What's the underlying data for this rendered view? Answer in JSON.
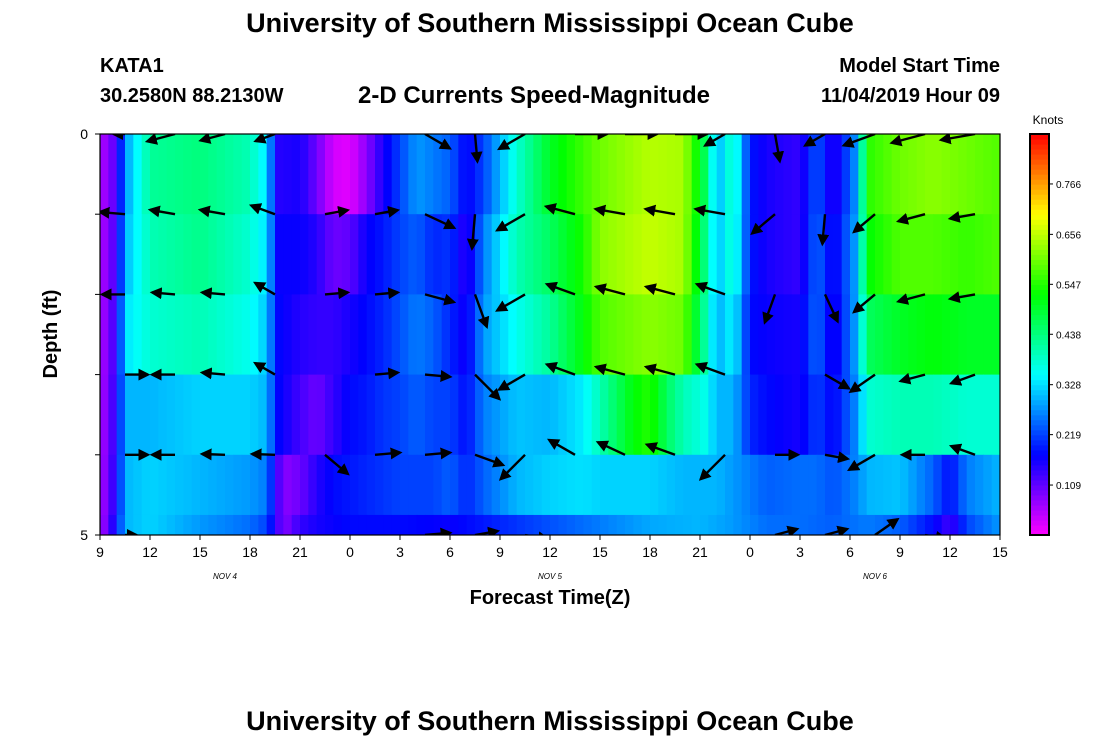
{
  "header": {
    "title": "University of Southern Mississippi Ocean Cube",
    "station": "KATA1",
    "coords": "30.2580N 88.2130W",
    "subtitle": "2-D Currents Speed-Magnitude",
    "model_start_label": "Model Start Time",
    "model_start_value": "11/04/2019 Hour 09"
  },
  "footer": {
    "title": "University of Southern Mississippi Ocean Cube"
  },
  "chart_data": {
    "type": "heatmap",
    "title": "2-D Currents Speed-Magnitude",
    "xlabel": "Forecast Time(Z)",
    "ylabel": "Depth (ft)",
    "x_ticks": [
      "9",
      "12",
      "15",
      "18",
      "21",
      "0",
      "3",
      "6",
      "9",
      "12",
      "15",
      "18",
      "21",
      "0",
      "3",
      "6",
      "9",
      "12",
      "15"
    ],
    "x_tick_hours": [
      0,
      3,
      6,
      9,
      12,
      15,
      18,
      21,
      24,
      27,
      30,
      33,
      36,
      39,
      42,
      45,
      48,
      51,
      54
    ],
    "day_labels": [
      {
        "label": "NOV 4",
        "hour": 7.5
      },
      {
        "label": "NOV 5",
        "hour": 27
      },
      {
        "label": "NOV 6",
        "hour": 46.5
      }
    ],
    "xlim": [
      0,
      54
    ],
    "y_ticks": [
      "0",
      "5"
    ],
    "ylim": [
      0,
      5
    ],
    "depth_rows": [
      0.5,
      1.5,
      2.5,
      3.5,
      4.5
    ],
    "colorbar": {
      "label": "Knots",
      "min": 0,
      "max": 0.875,
      "tick_values": [
        0.766,
        0.656,
        0.547,
        0.438,
        0.328,
        0.219,
        0.109
      ],
      "tick_labels": [
        "0.766",
        "0.656",
        "0.547",
        "0.438",
        "0.328",
        "0.219",
        "0.109"
      ]
    },
    "speed_profiles": [
      {
        "depth": 0.5,
        "points": [
          [
            0,
            0.05
          ],
          [
            1,
            0.12
          ],
          [
            1.5,
            0.28
          ],
          [
            3,
            0.42
          ],
          [
            6,
            0.44
          ],
          [
            9,
            0.4
          ],
          [
            10,
            0.33
          ],
          [
            10.6,
            0.15
          ],
          [
            12,
            0.16
          ],
          [
            13,
            0.1
          ],
          [
            14,
            0.03
          ],
          [
            15,
            0.02
          ],
          [
            16,
            0.08
          ],
          [
            17,
            0.16
          ],
          [
            18,
            0.22
          ],
          [
            19,
            0.28
          ],
          [
            20,
            0.26
          ],
          [
            21,
            0.24
          ],
          [
            22,
            0.17
          ],
          [
            23,
            0.22
          ],
          [
            25,
            0.38
          ],
          [
            27,
            0.5
          ],
          [
            30,
            0.6
          ],
          [
            33,
            0.65
          ],
          [
            35,
            0.64
          ],
          [
            36.4,
            0.45
          ],
          [
            37,
            0.29
          ],
          [
            38,
            0.4
          ],
          [
            39,
            0.19
          ],
          [
            40,
            0.16
          ],
          [
            42,
            0.14
          ],
          [
            43,
            0.24
          ],
          [
            44,
            0.14
          ],
          [
            45.5,
            0.29
          ],
          [
            46,
            0.55
          ],
          [
            48,
            0.6
          ],
          [
            50,
            0.62
          ],
          [
            52,
            0.6
          ],
          [
            54,
            0.58
          ]
        ]
      },
      {
        "depth": 1.5,
        "points": [
          [
            0,
            0.05
          ],
          [
            1,
            0.13
          ],
          [
            1.5,
            0.3
          ],
          [
            3,
            0.4
          ],
          [
            6,
            0.43
          ],
          [
            9,
            0.38
          ],
          [
            10,
            0.33
          ],
          [
            10.6,
            0.17
          ],
          [
            12,
            0.17
          ],
          [
            13,
            0.15
          ],
          [
            14,
            0.1
          ],
          [
            15,
            0.11
          ],
          [
            16,
            0.17
          ],
          [
            17,
            0.19
          ],
          [
            18,
            0.22
          ],
          [
            19,
            0.24
          ],
          [
            20,
            0.2
          ],
          [
            21,
            0.21
          ],
          [
            22,
            0.14
          ],
          [
            23,
            0.26
          ],
          [
            25,
            0.4
          ],
          [
            27,
            0.46
          ],
          [
            29,
            0.54
          ],
          [
            30,
            0.62
          ],
          [
            33,
            0.66
          ],
          [
            35,
            0.64
          ],
          [
            36.4,
            0.42
          ],
          [
            37,
            0.3
          ],
          [
            38,
            0.39
          ],
          [
            39,
            0.19
          ],
          [
            40,
            0.16
          ],
          [
            42,
            0.14
          ],
          [
            43,
            0.25
          ],
          [
            44,
            0.16
          ],
          [
            45.5,
            0.3
          ],
          [
            46,
            0.52
          ],
          [
            48,
            0.58
          ],
          [
            50,
            0.58
          ],
          [
            52,
            0.56
          ],
          [
            54,
            0.58
          ]
        ]
      },
      {
        "depth": 2.5,
        "points": [
          [
            0,
            0.05
          ],
          [
            1,
            0.14
          ],
          [
            1.5,
            0.33
          ],
          [
            3,
            0.38
          ],
          [
            6,
            0.4
          ],
          [
            9,
            0.36
          ],
          [
            10,
            0.31
          ],
          [
            10.6,
            0.18
          ],
          [
            12,
            0.15
          ],
          [
            13,
            0.14
          ],
          [
            14,
            0.14
          ],
          [
            15,
            0.16
          ],
          [
            16,
            0.18
          ],
          [
            17,
            0.2
          ],
          [
            18,
            0.23
          ],
          [
            19,
            0.26
          ],
          [
            20,
            0.24
          ],
          [
            21,
            0.2
          ],
          [
            22,
            0.16
          ],
          [
            23,
            0.28
          ],
          [
            25,
            0.36
          ],
          [
            27,
            0.42
          ],
          [
            29,
            0.52
          ],
          [
            30,
            0.58
          ],
          [
            33,
            0.62
          ],
          [
            35,
            0.6
          ],
          [
            36.4,
            0.4
          ],
          [
            37,
            0.29
          ],
          [
            38,
            0.35
          ],
          [
            39,
            0.18
          ],
          [
            40,
            0.17
          ],
          [
            42,
            0.16
          ],
          [
            43,
            0.25
          ],
          [
            44,
            0.15
          ],
          [
            45.5,
            0.3
          ],
          [
            46,
            0.46
          ],
          [
            48,
            0.5
          ],
          [
            50,
            0.52
          ],
          [
            52,
            0.5
          ],
          [
            54,
            0.5
          ]
        ]
      },
      {
        "depth": 3.5,
        "points": [
          [
            0,
            0.05
          ],
          [
            1,
            0.15
          ],
          [
            1.5,
            0.3
          ],
          [
            3,
            0.3
          ],
          [
            6,
            0.32
          ],
          [
            9,
            0.32
          ],
          [
            10,
            0.3
          ],
          [
            10.6,
            0.18
          ],
          [
            12,
            0.13
          ],
          [
            13,
            0.1
          ],
          [
            14,
            0.14
          ],
          [
            15,
            0.18
          ],
          [
            16,
            0.19
          ],
          [
            17,
            0.21
          ],
          [
            18,
            0.22
          ],
          [
            19,
            0.24
          ],
          [
            20,
            0.22
          ],
          [
            21,
            0.22
          ],
          [
            22,
            0.18
          ],
          [
            23,
            0.26
          ],
          [
            25,
            0.31
          ],
          [
            27,
            0.3
          ],
          [
            29,
            0.34
          ],
          [
            30,
            0.4
          ],
          [
            31,
            0.46
          ],
          [
            32,
            0.52
          ],
          [
            33,
            0.55
          ],
          [
            34,
            0.46
          ],
          [
            35,
            0.4
          ],
          [
            36.4,
            0.36
          ],
          [
            37,
            0.3
          ],
          [
            38,
            0.3
          ],
          [
            39,
            0.2
          ],
          [
            40,
            0.18
          ],
          [
            42,
            0.16
          ],
          [
            43,
            0.22
          ],
          [
            44,
            0.17
          ],
          [
            45.5,
            0.28
          ],
          [
            46,
            0.38
          ],
          [
            48,
            0.4
          ],
          [
            50,
            0.4
          ],
          [
            52,
            0.38
          ],
          [
            54,
            0.38
          ]
        ]
      },
      {
        "depth": 4.5,
        "points": [
          [
            0,
            0.05
          ],
          [
            1,
            0.16
          ],
          [
            1.5,
            0.3
          ],
          [
            3,
            0.32
          ],
          [
            6,
            0.3
          ],
          [
            9,
            0.28
          ],
          [
            10,
            0.26
          ],
          [
            10.6,
            0.14
          ],
          [
            11,
            0.08
          ],
          [
            12,
            0.1
          ],
          [
            13,
            0.15
          ],
          [
            14,
            0.18
          ],
          [
            15,
            0.19
          ],
          [
            16,
            0.2
          ],
          [
            17,
            0.21
          ],
          [
            18,
            0.22
          ],
          [
            20,
            0.22
          ],
          [
            21,
            0.24
          ],
          [
            22,
            0.2
          ],
          [
            23,
            0.24
          ],
          [
            25,
            0.3
          ],
          [
            27,
            0.32
          ],
          [
            29,
            0.33
          ],
          [
            30,
            0.32
          ],
          [
            33,
            0.32
          ],
          [
            35,
            0.3
          ],
          [
            36.4,
            0.3
          ],
          [
            37,
            0.3
          ],
          [
            38,
            0.28
          ],
          [
            39,
            0.26
          ],
          [
            40,
            0.24
          ],
          [
            42,
            0.25
          ],
          [
            43,
            0.25
          ],
          [
            44,
            0.23
          ],
          [
            45.5,
            0.27
          ],
          [
            46,
            0.3
          ],
          [
            48,
            0.31
          ],
          [
            50,
            0.24
          ],
          [
            51,
            0.18
          ],
          [
            52,
            0.26
          ],
          [
            54,
            0.3
          ]
        ]
      },
      {
        "depth": 5.0,
        "points": [
          [
            0,
            0.05
          ],
          [
            1,
            0.18
          ],
          [
            1.5,
            0.3
          ],
          [
            3,
            0.32
          ],
          [
            6,
            0.28
          ],
          [
            9,
            0.25
          ],
          [
            10,
            0.22
          ],
          [
            10.6,
            0.14
          ],
          [
            11,
            0.08
          ],
          [
            12,
            0.14
          ],
          [
            13,
            0.16
          ],
          [
            15,
            0.18
          ],
          [
            18,
            0.18
          ],
          [
            21,
            0.17
          ],
          [
            22,
            0.18
          ],
          [
            24,
            0.2
          ],
          [
            27,
            0.23
          ],
          [
            30,
            0.26
          ],
          [
            33,
            0.29
          ],
          [
            36,
            0.3
          ],
          [
            38,
            0.28
          ],
          [
            40,
            0.25
          ],
          [
            42,
            0.25
          ],
          [
            44,
            0.24
          ],
          [
            46,
            0.26
          ],
          [
            48,
            0.24
          ],
          [
            50,
            0.18
          ],
          [
            51,
            0.13
          ],
          [
            52,
            0.22
          ],
          [
            54,
            0.28
          ]
        ]
      }
    ],
    "vector_hours": [
      1.5,
      4.5,
      7.5,
      10.5,
      13.5,
      16.5,
      19.5,
      22.5,
      25.5,
      28.5,
      31.5,
      34.5,
      37.5,
      40.5,
      43.5,
      46.5,
      49.5,
      52.5
    ],
    "vector_rows": [
      {
        "depth": 0,
        "speed": [
          0.1,
          0.25,
          0.22,
          0.18,
          0.0,
          0.0,
          0.25,
          0.24,
          0.26,
          0.28,
          0.28,
          0.28,
          0.2,
          0.24,
          0.2,
          0.29,
          0.3,
          0.3
        ],
        "dir_deg": [
          180,
          195,
          195,
          200,
          0,
          0,
          -30,
          -85,
          -150,
          0,
          0,
          0,
          -150,
          -80,
          -150,
          -160,
          -165,
          -170
        ]
      },
      {
        "depth": 1,
        "speed": [
          0.22,
          0.22,
          0.22,
          0.22,
          0.2,
          0.2,
          0.28,
          0.3,
          0.28,
          0.26,
          0.26,
          0.26,
          0.26,
          0.26,
          0.26,
          0.24,
          0.24,
          0.22
        ],
        "dir_deg": [
          175,
          170,
          170,
          160,
          10,
          10,
          -25,
          -95,
          -150,
          165,
          170,
          170,
          170,
          -140,
          -95,
          -140,
          -165,
          -170
        ]
      },
      {
        "depth": 2,
        "speed": [
          0.2,
          0.2,
          0.2,
          0.2,
          0.2,
          0.2,
          0.26,
          0.3,
          0.28,
          0.26,
          0.26,
          0.26,
          0.26,
          0.26,
          0.26,
          0.24,
          0.24,
          0.22
        ],
        "dir_deg": [
          180,
          175,
          175,
          150,
          5,
          5,
          -15,
          -70,
          -150,
          160,
          165,
          165,
          160,
          -110,
          -65,
          -140,
          -165,
          -170
        ]
      },
      {
        "depth": 3,
        "speed": [
          0.2,
          0.2,
          0.2,
          0.2,
          0.0,
          0.2,
          0.22,
          0.3,
          0.26,
          0.26,
          0.26,
          0.26,
          0.26,
          0.0,
          0.24,
          0.26,
          0.22,
          0.22
        ],
        "dir_deg": [
          0,
          180,
          175,
          150,
          0,
          5,
          -5,
          -45,
          -150,
          160,
          165,
          165,
          160,
          0,
          -30,
          -145,
          -165,
          -160
        ]
      },
      {
        "depth": 4,
        "speed": [
          0.2,
          0.2,
          0.2,
          0.2,
          0.26,
          0.22,
          0.22,
          0.26,
          0.3,
          0.26,
          0.26,
          0.26,
          0.3,
          0.2,
          0.2,
          0.26,
          0.2,
          0.22
        ],
        "dir_deg": [
          0,
          180,
          178,
          178,
          -40,
          5,
          5,
          -20,
          -135,
          150,
          155,
          160,
          -135,
          0,
          -10,
          -150,
          180,
          160
        ]
      },
      {
        "depth": 5,
        "speed": [
          0.1,
          0.0,
          0.0,
          0.0,
          0.0,
          0.0,
          0.22,
          0.2,
          0.2,
          0.0,
          0.0,
          0.0,
          0.0,
          0.2,
          0.2,
          0.24,
          0.18,
          0.0
        ],
        "dir_deg": [
          0,
          0,
          0,
          0,
          0,
          0,
          5,
          10,
          -10,
          0,
          0,
          0,
          0,
          15,
          15,
          35,
          -10,
          0
        ]
      }
    ]
  }
}
